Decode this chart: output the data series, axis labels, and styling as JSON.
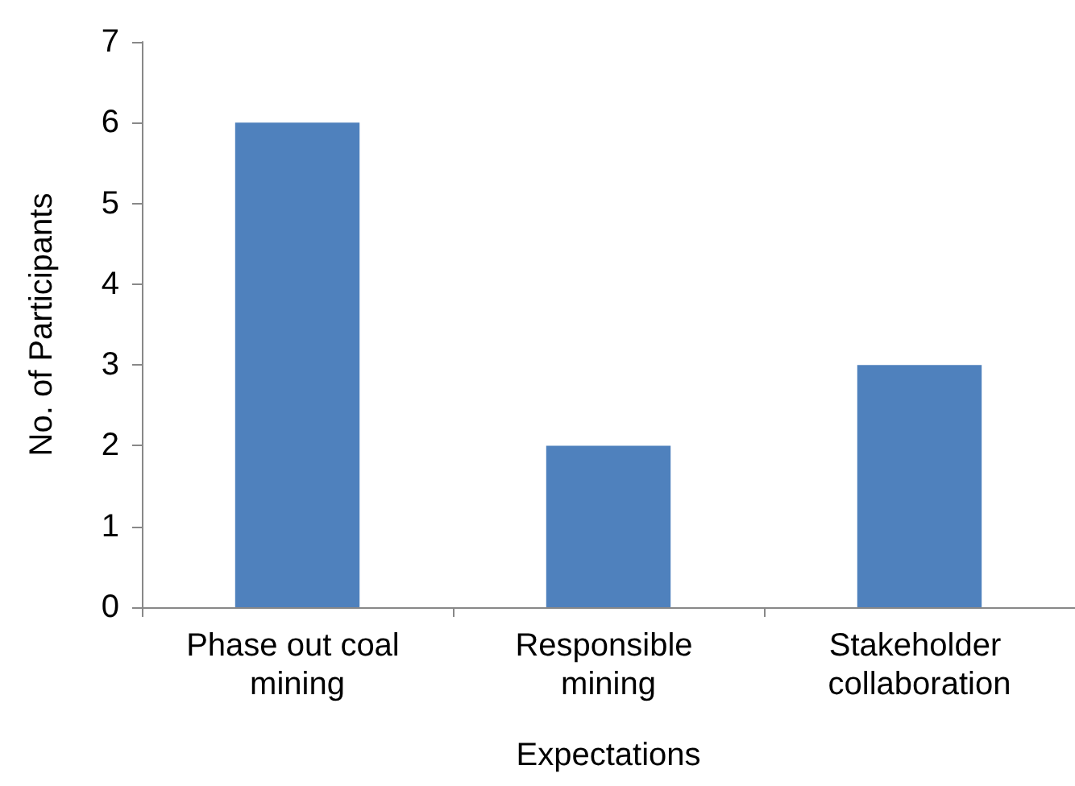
{
  "chart_data": {
    "type": "bar",
    "xlabel": "Expectations",
    "ylabel": "No. of Participants",
    "categories": [
      "Phase out coal mining",
      "Responsible mining",
      "Stakeholder collaboration"
    ],
    "values": [
      6,
      2,
      3
    ],
    "color": "#4f81bd",
    "ylim": [
      0,
      7
    ],
    "yticks": [
      0,
      1,
      2,
      3,
      4,
      5,
      6,
      7
    ],
    "grid": false
  }
}
